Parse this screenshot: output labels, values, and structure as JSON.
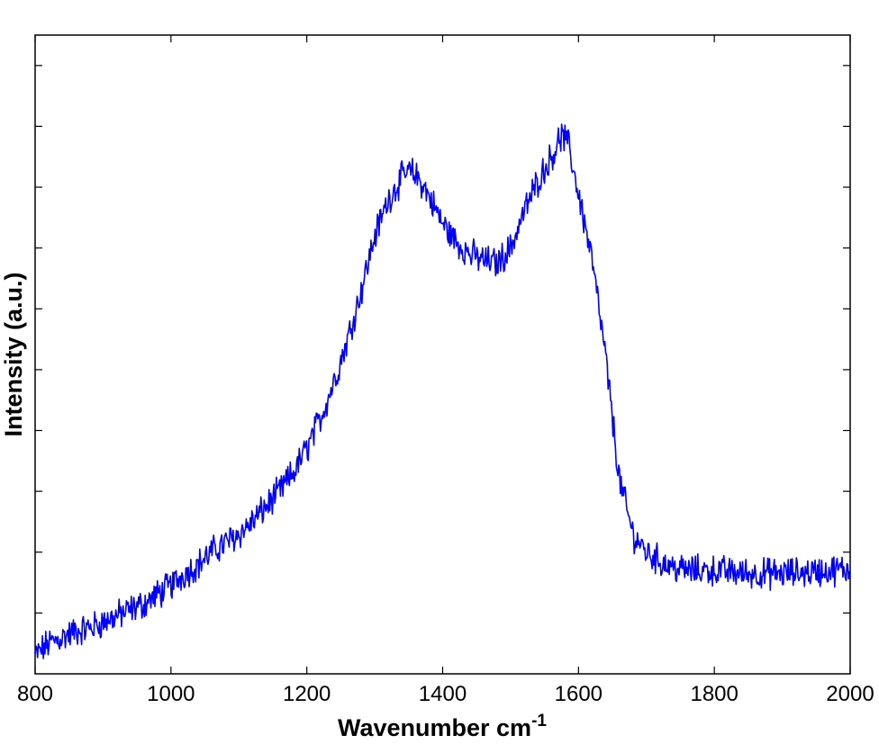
{
  "chart_data": {
    "type": "line",
    "title": "",
    "xlabel": "Wavenumber cm",
    "xlabel_superscript": "-1",
    "ylabel": "Intensity (a.u.)",
    "xlim": [
      800,
      2000
    ],
    "ylim": [
      0,
      10.5
    ],
    "x_ticks": [
      800,
      1000,
      1200,
      1400,
      1600,
      1800,
      2000
    ],
    "x_tick_labels": [
      "800",
      "1000",
      "1200",
      "1400",
      "1600",
      "1800",
      "2000"
    ],
    "y_tick_count": 10,
    "y_tick_labels_shown": false,
    "grid": false,
    "legend": "none",
    "series": [
      {
        "color": "#0000ff",
        "x": [
          800,
          820,
          840,
          860,
          880,
          900,
          920,
          940,
          960,
          980,
          1000,
          1020,
          1040,
          1060,
          1080,
          1100,
          1120,
          1140,
          1160,
          1180,
          1200,
          1220,
          1240,
          1260,
          1280,
          1300,
          1320,
          1340,
          1350,
          1360,
          1370,
          1380,
          1400,
          1420,
          1440,
          1460,
          1480,
          1500,
          1520,
          1540,
          1560,
          1575,
          1585,
          1600,
          1620,
          1640,
          1660,
          1680,
          1700,
          1720,
          1740,
          1760,
          1800,
          1850,
          1900,
          1950,
          2000
        ],
        "y": [
          0.3,
          0.5,
          0.6,
          0.7,
          0.75,
          0.85,
          0.95,
          1.05,
          1.15,
          1.3,
          1.45,
          1.65,
          1.8,
          2.0,
          2.15,
          2.3,
          2.5,
          2.75,
          3.0,
          3.3,
          3.7,
          4.2,
          4.8,
          5.5,
          6.3,
          7.2,
          7.8,
          8.15,
          8.25,
          8.2,
          8.05,
          7.85,
          7.4,
          7.1,
          6.9,
          6.8,
          6.75,
          7.0,
          7.6,
          8.1,
          8.5,
          8.85,
          8.7,
          7.9,
          6.8,
          5.2,
          3.2,
          2.3,
          2.0,
          1.85,
          1.75,
          1.7,
          1.7,
          1.65,
          1.65,
          1.68,
          1.72
        ]
      }
    ]
  }
}
